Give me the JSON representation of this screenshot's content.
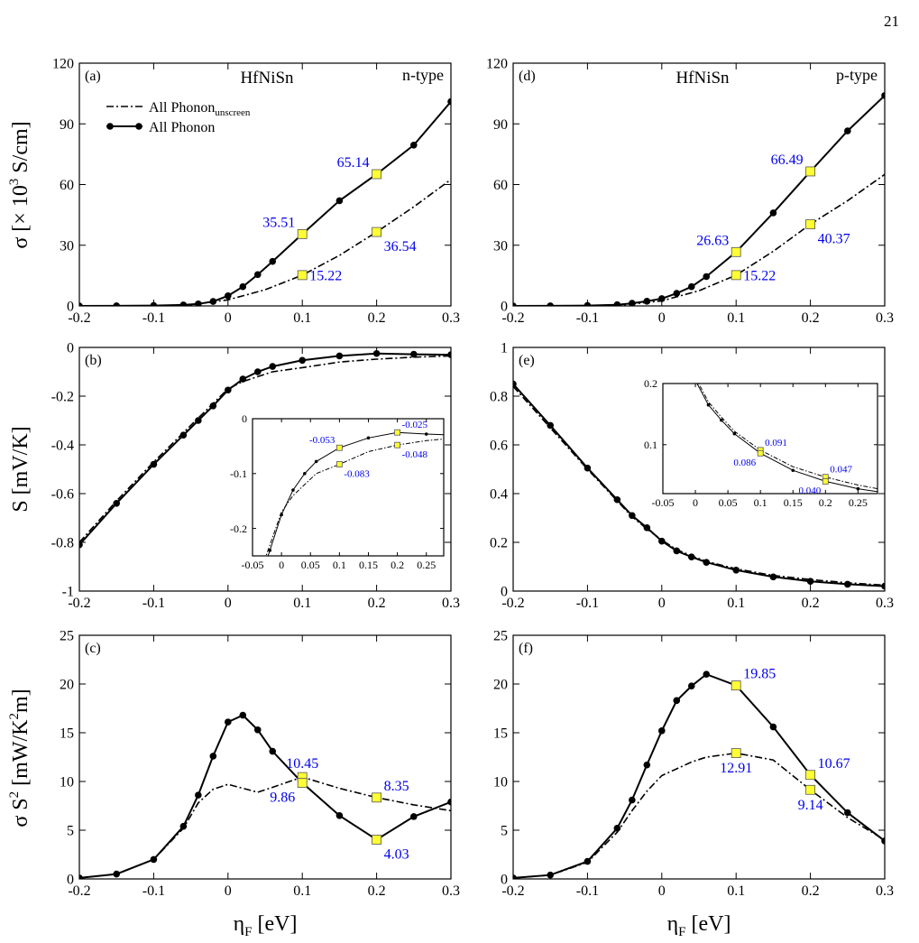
{
  "page_number": "21",
  "annotation_color": "#0000ee",
  "marker_color": "#ffff33",
  "legend": {
    "unscreened": "All Phonon",
    "unscreened_sub": "unscreen",
    "screened": "All Phonon"
  },
  "axis_labels": {
    "sigma": "σ [× 10",
    "sigma_sup": "3",
    "sigma_unit": " S/cm]",
    "seebeck": "S  [mV/K]",
    "pf_main": "σ S",
    "pf_sup": "2",
    "pf_unit": " [mW/K",
    "pf_sup2": "2",
    "pf_end": "m]",
    "eta": "η",
    "eta_sub": "F",
    "eta_unit": " [eV]"
  },
  "chart_data": [
    {
      "id": "a",
      "type": "line",
      "panel_label": "(a)",
      "title": "HfNiSn",
      "tag": "n-type",
      "xlim": [
        -0.2,
        0.3
      ],
      "ylim": [
        0,
        120
      ],
      "xticks": [
        "-0.2",
        "-0.1",
        "0",
        "0.1",
        "0.2",
        "0.3"
      ],
      "yticks": [
        "0",
        "30",
        "60",
        "90",
        "120"
      ],
      "xtick_values": [
        -0.2,
        -0.1,
        0,
        0.1,
        0.2,
        0.3
      ],
      "ytick_values": [
        0,
        30,
        60,
        90,
        120
      ],
      "series": [
        {
          "role": "screened",
          "style": "solid",
          "x": [
            -0.2,
            -0.15,
            -0.1,
            -0.06,
            -0.04,
            -0.02,
            0,
            0.02,
            0.04,
            0.06,
            0.1,
            0.15,
            0.2,
            0.25,
            0.3
          ],
          "y": [
            0,
            0.05,
            0.2,
            0.5,
            1.0,
            2.2,
            5,
            9.5,
            15.5,
            22,
            35.51,
            52,
            65.14,
            79.5,
            101
          ]
        },
        {
          "role": "unscreened",
          "style": "dashdot",
          "x": [
            -0.2,
            -0.1,
            -0.05,
            0,
            0.05,
            0.1,
            0.15,
            0.2,
            0.25,
            0.3
          ],
          "y": [
            0,
            0.1,
            0.6,
            3,
            8,
            15.22,
            25,
            36.54,
            49,
            62.5
          ]
        }
      ],
      "annotations": [
        {
          "x": 0.1,
          "y": 35.51,
          "text": "35.51",
          "pos": "above-left"
        },
        {
          "x": 0.2,
          "y": 65.14,
          "text": "65.14",
          "pos": "above-left"
        },
        {
          "x": 0.1,
          "y": 15.22,
          "text": "15.22",
          "pos": "right"
        },
        {
          "x": 0.2,
          "y": 36.54,
          "text": "36.54",
          "pos": "below-right"
        }
      ]
    },
    {
      "id": "d",
      "type": "line",
      "panel_label": "(d)",
      "title": "HfNiSn",
      "tag": "p-type",
      "xlim": [
        -0.2,
        0.3
      ],
      "ylim": [
        0,
        120
      ],
      "xticks": [
        "-0.2",
        "-0.1",
        "0",
        "0.1",
        "0.2",
        "0.3"
      ],
      "yticks": [
        "0",
        "30",
        "60",
        "90",
        "120"
      ],
      "xtick_values": [
        -0.2,
        -0.1,
        0,
        0.1,
        0.2,
        0.3
      ],
      "ytick_values": [
        0,
        30,
        60,
        90,
        120
      ],
      "series": [
        {
          "role": "screened",
          "style": "solid",
          "x": [
            -0.2,
            -0.15,
            -0.1,
            -0.06,
            -0.04,
            -0.02,
            0,
            0.02,
            0.04,
            0.06,
            0.1,
            0.15,
            0.2,
            0.25,
            0.3
          ],
          "y": [
            0,
            0.05,
            0.2,
            0.6,
            1.3,
            2.3,
            3.6,
            6.2,
            9.5,
            14.5,
            26.63,
            46,
            66.49,
            86.5,
            104
          ]
        },
        {
          "role": "unscreened",
          "style": "dashdot",
          "x": [
            -0.2,
            -0.1,
            -0.05,
            0,
            0.05,
            0.1,
            0.15,
            0.2,
            0.25,
            0.3
          ],
          "y": [
            0,
            0.1,
            0.6,
            2.5,
            7.5,
            15.22,
            27,
            40.37,
            52,
            65
          ]
        }
      ],
      "annotations": [
        {
          "x": 0.1,
          "y": 26.63,
          "text": "26.63",
          "pos": "above-left"
        },
        {
          "x": 0.2,
          "y": 66.49,
          "text": "66.49",
          "pos": "above-left"
        },
        {
          "x": 0.1,
          "y": 15.22,
          "text": "15.22",
          "pos": "right"
        },
        {
          "x": 0.2,
          "y": 40.37,
          "text": "40.37",
          "pos": "below-right"
        }
      ]
    },
    {
      "id": "b",
      "type": "line",
      "panel_label": "(b)",
      "xlim": [
        -0.2,
        0.3
      ],
      "ylim": [
        -1,
        0
      ],
      "xticks": [
        "-0.2",
        "-0.1",
        "0",
        "0.1",
        "0.2",
        "0.3"
      ],
      "yticks": [
        "-1",
        "-0.8",
        "-0.6",
        "-0.4",
        "-0.2",
        "0"
      ],
      "xtick_values": [
        -0.2,
        -0.1,
        0,
        0.1,
        0.2,
        0.3
      ],
      "ytick_values": [
        -1,
        -0.8,
        -0.6,
        -0.4,
        -0.2,
        0
      ],
      "series": [
        {
          "role": "screened",
          "style": "solid",
          "x": [
            -0.2,
            -0.15,
            -0.1,
            -0.06,
            -0.04,
            -0.02,
            0,
            0.02,
            0.04,
            0.06,
            0.1,
            0.15,
            0.2,
            0.25,
            0.3
          ],
          "y": [
            -0.81,
            -0.64,
            -0.48,
            -0.36,
            -0.3,
            -0.24,
            -0.175,
            -0.13,
            -0.1,
            -0.078,
            -0.053,
            -0.035,
            -0.025,
            -0.028,
            -0.03
          ]
        },
        {
          "role": "unscreened",
          "style": "dashdot",
          "x": [
            -0.2,
            -0.15,
            -0.1,
            -0.06,
            -0.04,
            -0.02,
            0,
            0.02,
            0.04,
            0.06,
            0.1,
            0.15,
            0.2,
            0.25,
            0.3
          ],
          "y": [
            -0.8,
            -0.63,
            -0.47,
            -0.35,
            -0.29,
            -0.23,
            -0.17,
            -0.14,
            -0.12,
            -0.1,
            -0.083,
            -0.06,
            -0.048,
            -0.04,
            -0.035
          ]
        }
      ],
      "annotations": [],
      "inset": {
        "xlim": [
          -0.05,
          0.28
        ],
        "ylim": [
          -0.25,
          0
        ],
        "xticks": [
          "-0.05",
          "0",
          "0.05",
          "0.1",
          "0.15",
          "0.2",
          "0.25"
        ],
        "yticks": [
          "-0.2",
          "-0.1",
          "0"
        ],
        "xtick_values": [
          -0.05,
          0,
          0.05,
          0.1,
          0.15,
          0.2,
          0.25
        ],
        "ytick_values": [
          -0.2,
          -0.1,
          0
        ],
        "annotations": [
          {
            "x": 0.1,
            "y": -0.053,
            "text": "-0.053",
            "pos": "above-left"
          },
          {
            "x": 0.1,
            "y": -0.083,
            "text": "-0.083",
            "pos": "below-right"
          },
          {
            "x": 0.2,
            "y": -0.025,
            "text": "-0.025",
            "pos": "above-right"
          },
          {
            "x": 0.2,
            "y": -0.048,
            "text": "-0.048",
            "pos": "below-right"
          }
        ]
      }
    },
    {
      "id": "e",
      "type": "line",
      "panel_label": "(e)",
      "xlim": [
        -0.2,
        0.3
      ],
      "ylim": [
        0,
        1
      ],
      "xticks": [
        "-0.2",
        "-0.1",
        "0",
        "0.1",
        "0.2",
        "0.3"
      ],
      "yticks": [
        "0",
        "0.2",
        "0.4",
        "0.6",
        "0.8",
        "1"
      ],
      "xtick_values": [
        -0.2,
        -0.1,
        0,
        0.1,
        0.2,
        0.3
      ],
      "ytick_values": [
        0,
        0.2,
        0.4,
        0.6,
        0.8,
        1
      ],
      "series": [
        {
          "role": "screened",
          "style": "solid",
          "x": [
            -0.2,
            -0.15,
            -0.1,
            -0.06,
            -0.04,
            -0.02,
            0,
            0.02,
            0.04,
            0.06,
            0.1,
            0.15,
            0.2,
            0.25,
            0.3
          ],
          "y": [
            0.85,
            0.68,
            0.505,
            0.375,
            0.31,
            0.26,
            0.205,
            0.165,
            0.14,
            0.118,
            0.086,
            0.058,
            0.04,
            0.028,
            0.02
          ]
        },
        {
          "role": "unscreened",
          "style": "dashdot",
          "x": [
            -0.2,
            -0.15,
            -0.1,
            -0.06,
            -0.04,
            -0.02,
            0,
            0.02,
            0.04,
            0.06,
            0.1,
            0.15,
            0.2,
            0.25,
            0.3
          ],
          "y": [
            0.84,
            0.67,
            0.5,
            0.37,
            0.305,
            0.255,
            0.21,
            0.17,
            0.145,
            0.122,
            0.091,
            0.064,
            0.047,
            0.034,
            0.024
          ]
        }
      ],
      "annotations": [],
      "inset": {
        "xlim": [
          -0.05,
          0.28
        ],
        "ylim": [
          0.02,
          0.2
        ],
        "xticks": [
          "-0.05",
          "0",
          "0.05",
          "0.1",
          "0.15",
          "0.2",
          "0.25"
        ],
        "yticks": [
          "0.1",
          "0.2"
        ],
        "xtick_values": [
          -0.05,
          0,
          0.05,
          0.1,
          0.15,
          0.2,
          0.25
        ],
        "ytick_values": [
          0.1,
          0.2
        ],
        "annotations": [
          {
            "x": 0.1,
            "y": 0.091,
            "text": "0.091",
            "pos": "above-right"
          },
          {
            "x": 0.1,
            "y": 0.086,
            "text": "0.086",
            "pos": "below-left"
          },
          {
            "x": 0.2,
            "y": 0.047,
            "text": "0.047",
            "pos": "above-right"
          },
          {
            "x": 0.2,
            "y": 0.04,
            "text": "0.040",
            "pos": "below-left"
          }
        ]
      }
    },
    {
      "id": "c",
      "type": "line",
      "panel_label": "(c)",
      "xlim": [
        -0.2,
        0.3
      ],
      "ylim": [
        0,
        25
      ],
      "xticks": [
        "-0.2",
        "-0.1",
        "0",
        "0.1",
        "0.2",
        "0.3"
      ],
      "yticks": [
        "0",
        "5",
        "10",
        "15",
        "20",
        "25"
      ],
      "xtick_values": [
        -0.2,
        -0.1,
        0,
        0.1,
        0.2,
        0.3
      ],
      "ytick_values": [
        0,
        5,
        10,
        15,
        20,
        25
      ],
      "series": [
        {
          "role": "screened",
          "style": "solid",
          "x": [
            -0.2,
            -0.15,
            -0.1,
            -0.06,
            -0.04,
            -0.02,
            0,
            0.02,
            0.04,
            0.06,
            0.1,
            0.15,
            0.2,
            0.25,
            0.3
          ],
          "y": [
            0.1,
            0.5,
            2.0,
            5.4,
            8.6,
            12.6,
            16.1,
            16.8,
            15.3,
            13.1,
            9.86,
            6.5,
            4.03,
            6.4,
            7.9
          ]
        },
        {
          "role": "unscreened",
          "style": "dashdot",
          "x": [
            -0.2,
            -0.15,
            -0.1,
            -0.06,
            -0.04,
            -0.02,
            0,
            0.02,
            0.04,
            0.06,
            0.1,
            0.15,
            0.2,
            0.25,
            0.3
          ],
          "y": [
            0.1,
            0.5,
            2.0,
            5.2,
            7.8,
            9.2,
            9.7,
            9.3,
            8.9,
            9.4,
            10.45,
            9.3,
            8.35,
            7.6,
            7.0
          ]
        }
      ],
      "annotations": [
        {
          "x": 0.1,
          "y": 10.45,
          "text": "10.45",
          "pos": "above"
        },
        {
          "x": 0.1,
          "y": 9.86,
          "text": "9.86",
          "pos": "below-left"
        },
        {
          "x": 0.2,
          "y": 8.35,
          "text": "8.35",
          "pos": "above-right"
        },
        {
          "x": 0.2,
          "y": 4.03,
          "text": "4.03",
          "pos": "below-right"
        }
      ]
    },
    {
      "id": "f",
      "type": "line",
      "panel_label": "(f)",
      "xlim": [
        -0.2,
        0.3
      ],
      "ylim": [
        0,
        25
      ],
      "xticks": [
        "-0.2",
        "-0.1",
        "0",
        "0.1",
        "0.2",
        "0.3"
      ],
      "yticks": [
        "0",
        "5",
        "10",
        "15",
        "20",
        "25"
      ],
      "xtick_values": [
        -0.2,
        -0.1,
        0,
        0.1,
        0.2,
        0.3
      ],
      "ytick_values": [
        0,
        5,
        10,
        15,
        20,
        25
      ],
      "series": [
        {
          "role": "screened",
          "style": "solid",
          "x": [
            -0.2,
            -0.15,
            -0.1,
            -0.06,
            -0.04,
            -0.02,
            0,
            0.02,
            0.04,
            0.06,
            0.1,
            0.15,
            0.2,
            0.25,
            0.3
          ],
          "y": [
            0.1,
            0.4,
            1.8,
            5.2,
            8.1,
            11.7,
            15.2,
            18.3,
            19.8,
            21.0,
            19.85,
            15.6,
            10.67,
            6.8,
            3.9
          ]
        },
        {
          "role": "unscreened",
          "style": "dashdot",
          "x": [
            -0.2,
            -0.15,
            -0.1,
            -0.06,
            -0.04,
            -0.02,
            0,
            0.02,
            0.04,
            0.06,
            0.1,
            0.15,
            0.2,
            0.25,
            0.3
          ],
          "y": [
            0.1,
            0.4,
            1.7,
            4.8,
            7.0,
            9.0,
            10.6,
            11.3,
            12.0,
            12.5,
            12.91,
            12.2,
            9.14,
            6.3,
            4.0
          ]
        }
      ],
      "annotations": [
        {
          "x": 0.1,
          "y": 19.85,
          "text": "19.85",
          "pos": "above-right"
        },
        {
          "x": 0.1,
          "y": 12.91,
          "text": "12.91",
          "pos": "below"
        },
        {
          "x": 0.2,
          "y": 10.67,
          "text": "10.67",
          "pos": "above-right"
        },
        {
          "x": 0.2,
          "y": 9.14,
          "text": "9.14",
          "pos": "below"
        }
      ]
    }
  ]
}
